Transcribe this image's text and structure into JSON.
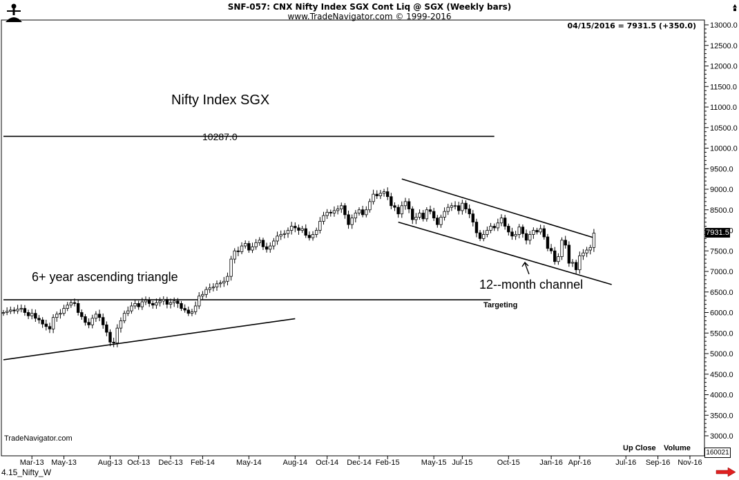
{
  "header": {
    "title": "SNF-057:  CNX Nifty Index SGX Cont Liq @ SGX  (Weekly bars)",
    "copyright": "www.TradeNavigator.com © 1999-2016",
    "last_bar_info": "04/15/2016 = 7931.5 (+350.0)",
    "logo_icon": "trader-figure-icon"
  },
  "annotations": {
    "title": "Nifty Index SGX",
    "level": "10287.0",
    "triangle": "6+ year ascending triangle",
    "channel": "12--month channel",
    "targeting": "Targeting",
    "watermark": "TradeNavigator.com"
  },
  "footer": {
    "up_close": "Up Close",
    "volume": "Volume",
    "volume_value": "160021",
    "last_price": "7931.5",
    "file_label": "4.15_Nifty_W",
    "scroll_icon": "red-right-arrow-icon"
  },
  "chart_data": {
    "type": "candlestick",
    "title": "",
    "ylim": [
      2600,
      13200
    ],
    "y_ticks": [
      3000,
      3500,
      4000,
      4500,
      5000,
      5500,
      6000,
      6500,
      7000,
      7500,
      8000,
      8500,
      9000,
      9500,
      10000,
      10500,
      11000,
      11500,
      12000,
      12500,
      13000
    ],
    "y_tick_labels": [
      "3000.0",
      "3500.0",
      "4000.0",
      "4500.0",
      "5000.0",
      "5500.0",
      "6000.0",
      "6500.0",
      "7000.0",
      "7500.0",
      "8000.0",
      "8500.0",
      "9000.0",
      "9500.0",
      "10000.0",
      "10500.0",
      "11000.0",
      "11500.0",
      "12000.0",
      "12500.0",
      "13000.0"
    ],
    "x_ticks": [
      {
        "week": 8,
        "label": "Mar-13"
      },
      {
        "week": 17,
        "label": "May-13"
      },
      {
        "week": 30,
        "label": "Aug-13"
      },
      {
        "week": 38,
        "label": "Oct-13"
      },
      {
        "week": 47,
        "label": "Dec-13"
      },
      {
        "week": 56,
        "label": "Feb-14"
      },
      {
        "week": 69,
        "label": "May-14"
      },
      {
        "week": 82,
        "label": "Aug-14"
      },
      {
        "week": 91,
        "label": "Oct-14"
      },
      {
        "week": 100,
        "label": "Dec-14"
      },
      {
        "week": 108,
        "label": "Feb-15"
      },
      {
        "week": 121,
        "label": "May-15"
      },
      {
        "week": 129,
        "label": "Jul-15"
      },
      {
        "week": 142,
        "label": "Oct-15"
      },
      {
        "week": 154,
        "label": "Jan-16"
      },
      {
        "week": 162,
        "label": "Apr-16"
      },
      {
        "week": 175,
        "label": "Jul-16"
      },
      {
        "week": 184,
        "label": "Sep-16"
      },
      {
        "week": 193,
        "label": "Nov-16"
      }
    ],
    "weekly_close": [
      6000,
      6030,
      6060,
      6040,
      6080,
      6100,
      6000,
      5920,
      5980,
      5860,
      5820,
      5720,
      5660,
      5600,
      5880,
      5960,
      5980,
      6100,
      6180,
      6240,
      6220,
      6000,
      5900,
      5760,
      5700,
      5860,
      5960,
      5880,
      5700,
      5520,
      5280,
      5260,
      5620,
      5800,
      5980,
      6040,
      6160,
      6220,
      6140,
      6260,
      6300,
      6220,
      6180,
      6240,
      6280,
      6320,
      6200,
      6240,
      6280,
      6220,
      6100,
      6060,
      5980,
      6020,
      6160,
      6400,
      6440,
      6560,
      6600,
      6620,
      6700,
      6720,
      6760,
      6880,
      7300,
      7500,
      7480,
      7620,
      7680,
      7520,
      7600,
      7700,
      7760,
      7600,
      7540,
      7620,
      7740,
      7860,
      7900,
      7920,
      8000,
      8100,
      8060,
      8000,
      8040,
      7880,
      7820,
      7900,
      8000,
      8220,
      8360,
      8440,
      8420,
      8480,
      8520,
      8600,
      8380,
      8140,
      8300,
      8420,
      8500,
      8380,
      8500,
      8700,
      8880,
      8840,
      8900,
      8940,
      8820,
      8600,
      8560,
      8400,
      8600,
      8700,
      8520,
      8260,
      8320,
      8420,
      8280,
      8500,
      8460,
      8300,
      8140,
      8320,
      8460,
      8560,
      8600,
      8600,
      8480,
      8660,
      8520,
      8400,
      8200,
      7940,
      7800,
      7900,
      8000,
      8100,
      8060,
      8180,
      8300,
      8100,
      7960,
      7860,
      7900,
      8080,
      7920,
      7760,
      7900,
      8000,
      7960,
      8040,
      7840,
      7560,
      7500,
      7240,
      7360,
      7760,
      7640,
      7200,
      7220,
      7040,
      7380,
      7450,
      7520,
      7582,
      7931.5
    ],
    "trendlines": [
      {
        "name": "triangle-support",
        "from": {
          "week": 0,
          "price": 4850
        },
        "to": {
          "week": 82,
          "price": 5850
        }
      },
      {
        "name": "breakout-level",
        "from": {
          "week": 0,
          "price": 6310
        },
        "to": {
          "week": 137,
          "price": 6310
        }
      },
      {
        "name": "target-level",
        "from": {
          "week": 0,
          "price": 10287.0
        },
        "to": {
          "week": 138,
          "price": 10287.0
        }
      },
      {
        "name": "channel-upper",
        "from": {
          "week": 112,
          "price": 9250
        },
        "to": {
          "week": 166,
          "price": 7820
        }
      },
      {
        "name": "channel-lower",
        "from": {
          "week": 111,
          "price": 8200
        },
        "to": {
          "week": 171,
          "price": 6680
        }
      }
    ],
    "grid": false
  }
}
